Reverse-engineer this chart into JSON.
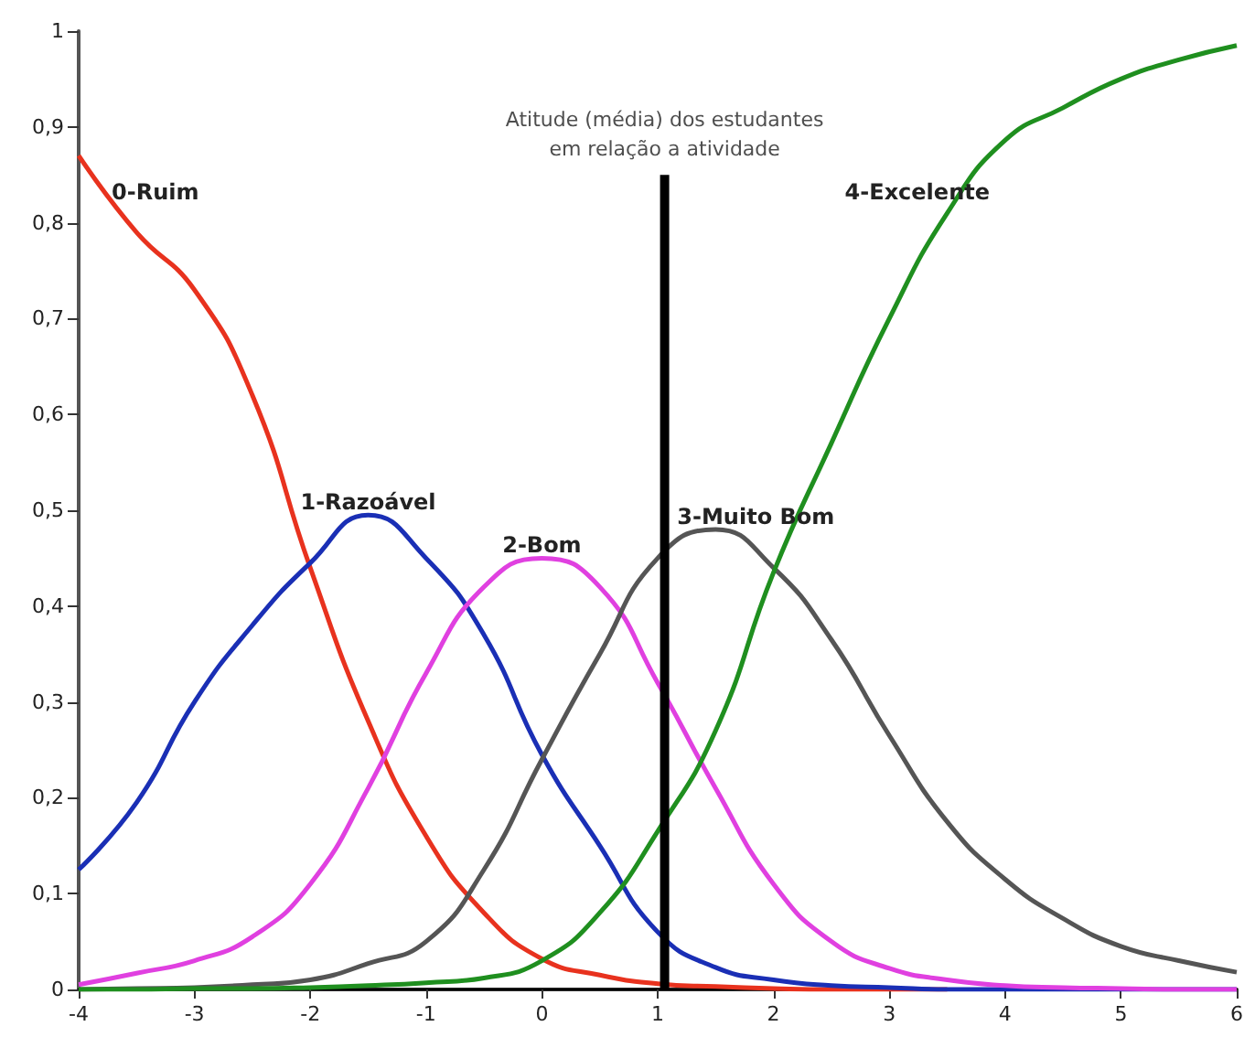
{
  "chart_data": {
    "type": "line",
    "x": [
      -4,
      -3.5,
      -3,
      -2.5,
      -2,
      -1.5,
      -1,
      -0.5,
      0,
      0.5,
      1,
      1.5,
      2,
      2.5,
      3,
      3.5,
      4,
      4.5,
      5,
      5.5,
      6
    ],
    "series": [
      {
        "name": "0-Ruim",
        "color": "#e8321e",
        "values": [
          0.87,
          0.79,
          0.73,
          0.62,
          0.44,
          0.28,
          0.16,
          0.08,
          0.032,
          0.015,
          0.006,
          0.003,
          0.001,
          0,
          0,
          0,
          null,
          null,
          null,
          null,
          null
        ]
      },
      {
        "name": "1-Razoável",
        "color": "#1a2fb5",
        "values": [
          0.125,
          0.195,
          0.3,
          0.38,
          0.445,
          0.495,
          0.45,
          0.37,
          0.245,
          0.15,
          0.06,
          0.023,
          0.01,
          0.004,
          0.002,
          0,
          0,
          0,
          0,
          0,
          0
        ]
      },
      {
        "name": "2-Bom",
        "color": "#e040e0",
        "values": [
          0.005,
          0.017,
          0.03,
          0.055,
          0.11,
          0.21,
          0.33,
          0.42,
          0.45,
          0.42,
          0.32,
          0.21,
          0.11,
          0.05,
          0.022,
          0.01,
          0.004,
          0.002,
          0.001,
          0,
          0
        ]
      },
      {
        "name": "3-Muito Bom",
        "color": "#555555",
        "values": [
          0,
          0.001,
          0.002,
          0.005,
          0.01,
          0.027,
          0.05,
          0.125,
          0.24,
          0.35,
          0.45,
          0.48,
          0.44,
          0.365,
          0.265,
          0.175,
          0.115,
          0.074,
          0.045,
          0.03,
          0.018
        ]
      },
      {
        "name": "4-Excelente",
        "color": "#1f8f1f",
        "values": [
          0,
          0,
          0.001,
          0.001,
          0.002,
          0.004,
          0.007,
          0.012,
          0.03,
          0.08,
          0.165,
          0.27,
          0.435,
          0.57,
          0.7,
          0.81,
          0.886,
          0.92,
          0.95,
          0.97,
          0.985
        ]
      },
      {
        "color": "#000000",
        "x": [
          1.06,
          1.06
        ],
        "values": [
          0,
          0.85
        ]
      }
    ],
    "xlim": [
      -4,
      6
    ],
    "xticks": [
      -4,
      -3,
      -2,
      -1,
      0,
      1,
      2,
      3,
      4,
      5,
      6
    ],
    "ylim": [
      0,
      1
    ],
    "yticks": [
      0,
      {
        "value": 0.1,
        "label": "0,1"
      },
      {
        "value": 0.2,
        "label": "0,2"
      },
      {
        "value": 0.3,
        "label": "0,3"
      },
      {
        "value": 0.4,
        "label": "0,4"
      },
      {
        "value": 0.5,
        "label": "0,5"
      },
      {
        "value": 0.6,
        "label": "0,6"
      },
      {
        "value": 0.7,
        "label": "0,7"
      },
      {
        "value": 0.8,
        "label": "0,8"
      },
      {
        "value": 0.9,
        "label": "0,9"
      },
      1
    ],
    "grid": false,
    "legend": false,
    "marker": "none",
    "line_style": "solid",
    "annotations": [
      "Atitude (média) dos estudantes\nem relação a atividade"
    ]
  }
}
